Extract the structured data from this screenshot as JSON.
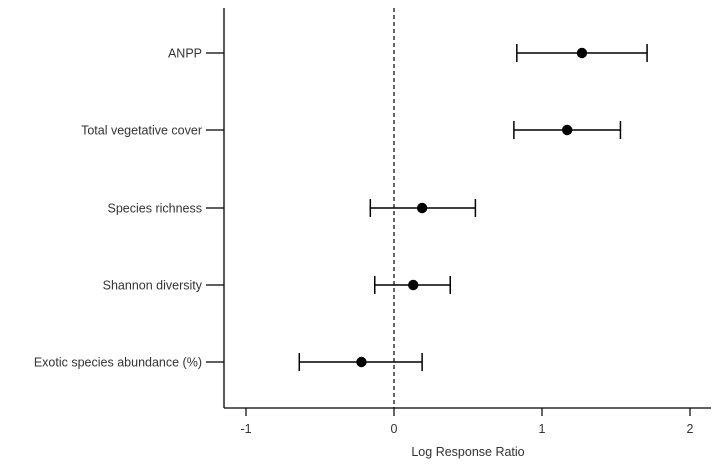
{
  "chart_data": {
    "type": "forest",
    "title": "",
    "xlabel": "Log Response Ratio",
    "ylabel": "",
    "xlim": [
      -1.15,
      2.15
    ],
    "xticks": [
      -1,
      0,
      1,
      2
    ],
    "xtick_labels": [
      "-1",
      "0",
      "1",
      "2"
    ],
    "reference_line": {
      "x": 0,
      "style": "dashed"
    },
    "grid": false,
    "colors": {
      "marker": "#000000",
      "line": "#000000",
      "text": "#333333"
    },
    "series": [
      {
        "label": "ANPP",
        "estimate": 1.27,
        "lower": 0.83,
        "upper": 1.71
      },
      {
        "label": "Total vegetative cover",
        "estimate": 1.17,
        "lower": 0.81,
        "upper": 1.53
      },
      {
        "label": "Species richness",
        "estimate": 0.19,
        "lower": -0.16,
        "upper": 0.55
      },
      {
        "label": "Shannon diversity",
        "estimate": 0.13,
        "lower": -0.13,
        "upper": 0.38
      },
      {
        "label": "Exotic species abundance (%)",
        "estimate": -0.22,
        "lower": -0.64,
        "upper": 0.19
      }
    ]
  }
}
